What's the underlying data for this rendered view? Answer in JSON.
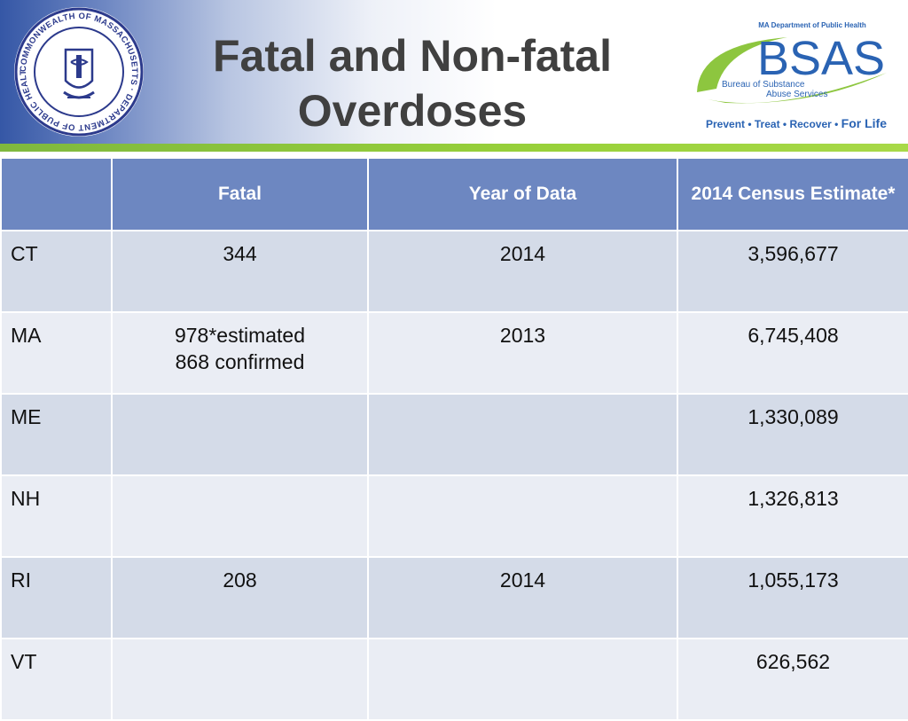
{
  "title": {
    "line1": "Fatal and Non-fatal",
    "line2": "Overdoses"
  },
  "seal": {
    "text": "COMMONWEALTH OF MASSACHUSETTS · DEPARTMENT OF PUBLIC HEALTH",
    "color": "#2c3a8c"
  },
  "logo": {
    "dept": "MA Department of Public Health",
    "name": "BSAS",
    "bureau_line1": "Bureau of Substance",
    "bureau_line2": "Abuse Services",
    "tagline_a": "Prevent • Treat • Recover • ",
    "tagline_b": "For Life",
    "blue": "#2a63b3",
    "green": "#8dc63f"
  },
  "colors": {
    "header_row": "#6d87c1",
    "row_odd": "#d4dbe8",
    "row_even": "#eaedf4",
    "accent_green": "#8dc63f"
  },
  "table": {
    "headers": [
      "",
      "Fatal",
      "Year of Data",
      "2014 Census Estimate*"
    ],
    "rows": [
      {
        "state": "CT",
        "fatal": [
          "344"
        ],
        "year": "2014",
        "census": "3,596,677"
      },
      {
        "state": "MA",
        "fatal": [
          "978*estimated",
          "868 confirmed"
        ],
        "year": "2013",
        "census": "6,745,408"
      },
      {
        "state": "ME",
        "fatal": [],
        "year": "",
        "census": "1,330,089"
      },
      {
        "state": "NH",
        "fatal": [],
        "year": "",
        "census": "1,326,813"
      },
      {
        "state": "RI",
        "fatal": [
          "208"
        ],
        "year": "2014",
        "census": "1,055,173"
      },
      {
        "state": "VT",
        "fatal": [],
        "year": "",
        "census": "626,562"
      }
    ]
  }
}
